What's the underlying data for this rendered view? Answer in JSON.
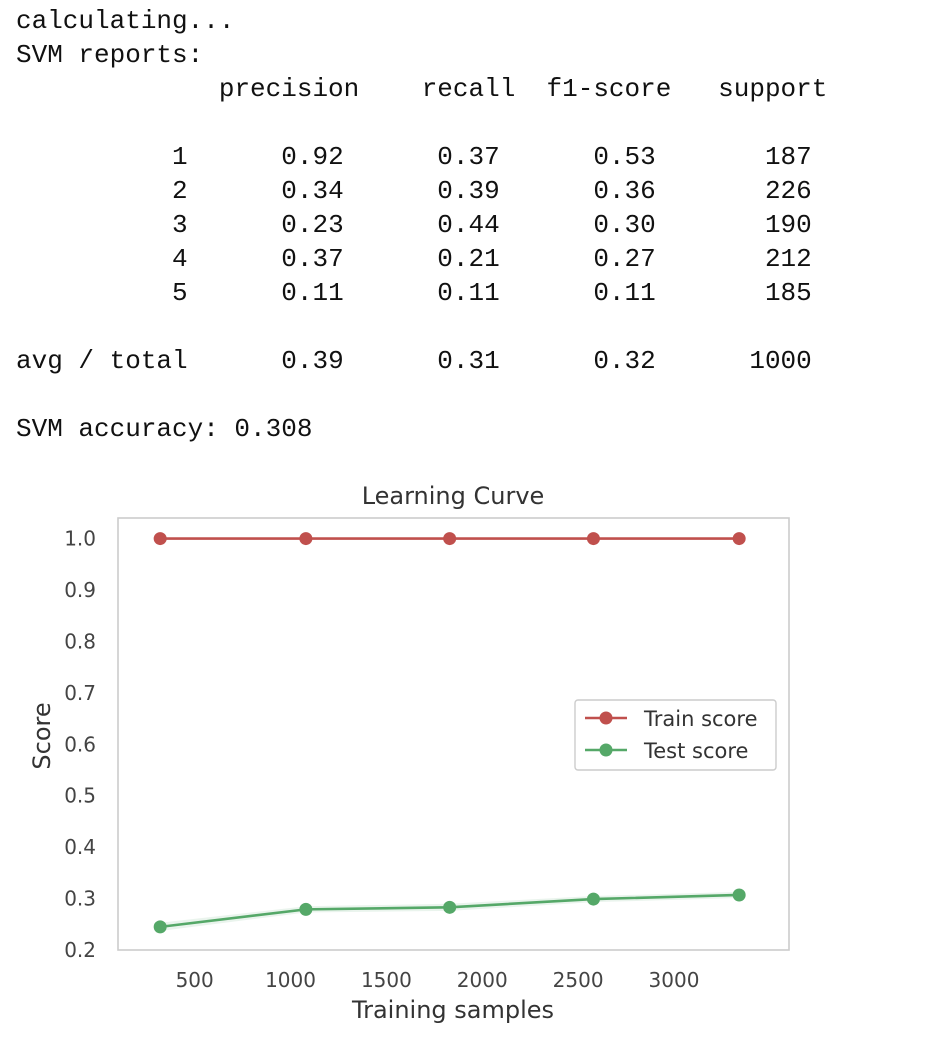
{
  "console": {
    "status": "calculating...",
    "report_heading": "SVM reports:",
    "columns": [
      "precision",
      "recall",
      "f1-score",
      "support"
    ],
    "rows": [
      {
        "label": "1",
        "precision": "0.92",
        "recall": "0.37",
        "f1": "0.53",
        "support": "187"
      },
      {
        "label": "2",
        "precision": "0.34",
        "recall": "0.39",
        "f1": "0.36",
        "support": "226"
      },
      {
        "label": "3",
        "precision": "0.23",
        "recall": "0.44",
        "f1": "0.30",
        "support": "190"
      },
      {
        "label": "4",
        "precision": "0.37",
        "recall": "0.21",
        "f1": "0.27",
        "support": "212"
      },
      {
        "label": "5",
        "precision": "0.11",
        "recall": "0.11",
        "f1": "0.11",
        "support": "185"
      }
    ],
    "total": {
      "label": "avg / total",
      "precision": "0.39",
      "recall": "0.31",
      "f1": "0.32",
      "support": "1000"
    },
    "accuracy": "SVM accuracy: 0.308"
  },
  "chart_data": {
    "type": "line",
    "title": "Learning Curve",
    "xlabel": "Training samples",
    "ylabel": "Score",
    "x": [
      320,
      1080,
      1830,
      2580,
      3340
    ],
    "series": [
      {
        "name": "Train score",
        "values": [
          1.0,
          1.0,
          1.0,
          1.0,
          1.0
        ],
        "color": "#c0504d",
        "band": [
          0.0,
          0.0,
          0.0,
          0.0,
          0.0
        ]
      },
      {
        "name": "Test score",
        "values": [
          0.245,
          0.279,
          0.283,
          0.299,
          0.307
        ],
        "color": "#55a868",
        "band": [
          0.008,
          0.006,
          0.007,
          0.006,
          0.006
        ]
      }
    ],
    "xticks": [
      500,
      1000,
      1500,
      2000,
      2500,
      3000
    ],
    "yticks": [
      0.2,
      0.3,
      0.4,
      0.5,
      0.6,
      0.7,
      0.8,
      0.9,
      1.0
    ],
    "xlim": [
      100,
      3600
    ],
    "ylim": [
      0.2,
      1.04
    ],
    "grid": false,
    "legend": "center-right"
  }
}
